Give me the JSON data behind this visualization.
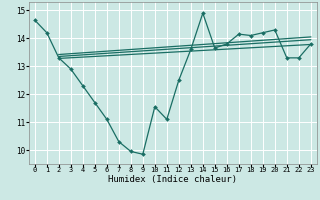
{
  "xlabel": "Humidex (Indice chaleur)",
  "bg_color": "#cce8e4",
  "grid_color": "#ffffff",
  "line_color": "#1a6e64",
  "xlim": [
    -0.5,
    23.5
  ],
  "ylim": [
    9.5,
    15.3
  ],
  "yticks": [
    10,
    11,
    12,
    13,
    14,
    15
  ],
  "xticks": [
    0,
    1,
    2,
    3,
    4,
    5,
    6,
    7,
    8,
    9,
    10,
    11,
    12,
    13,
    14,
    15,
    16,
    17,
    18,
    19,
    20,
    21,
    22,
    23
  ],
  "series1_x": [
    0,
    1,
    2,
    3,
    4,
    5,
    6,
    7,
    8,
    9,
    10,
    11,
    12,
    13,
    14,
    15,
    16,
    17,
    18,
    19,
    20,
    21,
    22,
    23
  ],
  "series1_y": [
    14.65,
    14.2,
    13.3,
    12.9,
    12.3,
    11.7,
    11.1,
    10.3,
    9.95,
    9.85,
    11.55,
    11.1,
    12.5,
    13.6,
    14.9,
    13.65,
    13.8,
    14.15,
    14.1,
    14.2,
    14.3,
    13.3,
    13.3,
    13.8
  ],
  "series2_x": [
    2,
    23
  ],
  "series2_y": [
    13.28,
    13.78
  ],
  "series3_x": [
    2,
    23
  ],
  "series3_y": [
    13.35,
    13.95
  ],
  "series4_x": [
    2,
    23
  ],
  "series4_y": [
    13.42,
    14.05
  ]
}
